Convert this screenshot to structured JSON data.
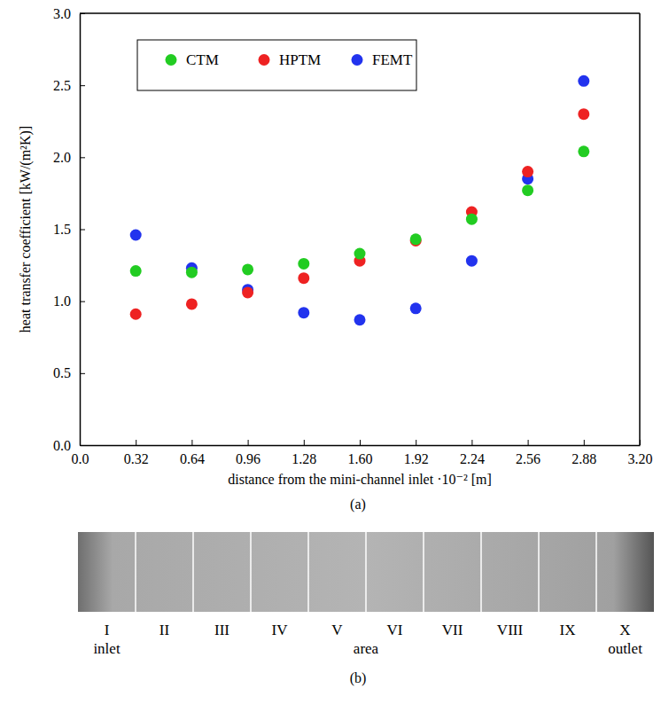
{
  "chart_data": {
    "type": "scatter",
    "x_label": "distance from the mini-channel inlet ·10⁻² [m]",
    "y_label": "heat transfer coefficient [kW/(m²K)]",
    "x": [
      0.32,
      0.64,
      0.96,
      1.28,
      1.6,
      1.92,
      2.24,
      2.56,
      2.88
    ],
    "series": [
      {
        "name": "CTM",
        "color": "#22cc22",
        "marker": "circle",
        "values": [
          1.21,
          1.2,
          1.22,
          1.26,
          1.33,
          1.43,
          1.57,
          1.77,
          2.04
        ]
      },
      {
        "name": "HPTM",
        "color": "#ee2222",
        "marker": "circle",
        "values": [
          0.91,
          0.98,
          1.06,
          1.16,
          1.28,
          1.42,
          1.62,
          1.9,
          2.3
        ]
      },
      {
        "name": "FEMT",
        "color": "#2233ee",
        "marker": "circle",
        "values": [
          1.46,
          1.23,
          1.08,
          0.92,
          0.87,
          0.95,
          1.28,
          1.85,
          2.53
        ]
      }
    ],
    "xlim": [
      0,
      3.2
    ],
    "xticks": [
      {
        "value": 0,
        "label": "0.0"
      },
      0.32,
      0.64,
      0.96,
      1.28,
      {
        "value": 1.6,
        "label": "1.60"
      },
      1.92,
      2.24,
      2.56,
      2.88,
      {
        "value": 3.2,
        "label": "3.20"
      }
    ],
    "ylim": [
      0,
      3
    ],
    "yticks": [
      {
        "value": 0,
        "label": "0.0"
      },
      0.5,
      {
        "value": 1,
        "label": "1.0"
      },
      1.5,
      {
        "value": 2,
        "label": "2.0"
      },
      2.5,
      {
        "value": 3,
        "label": "3.0"
      }
    ],
    "grid": false,
    "legend": "top"
  },
  "captions": [
    "(a)",
    "(b)"
  ],
  "photo": {
    "areas": [
      "I",
      "II",
      "III",
      "IV",
      "V",
      "VI",
      "VII",
      "VIII",
      "IX",
      "X"
    ],
    "inlet": "inlet",
    "area": "area",
    "outlet": "outlet"
  }
}
